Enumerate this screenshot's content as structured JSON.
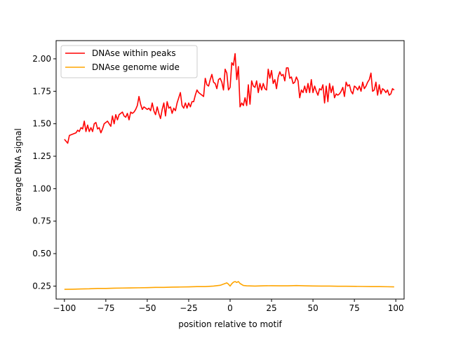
{
  "chart_data": {
    "type": "line",
    "xlabel": "position relative to motif",
    "ylabel": "average DNA signal",
    "xlim": [
      -105,
      105
    ],
    "ylim": [
      0.15,
      2.14
    ],
    "x_ticks": [
      -100,
      -75,
      -50,
      -25,
      0,
      25,
      50,
      75,
      100
    ],
    "y_ticks": [
      0.25,
      0.5,
      0.75,
      1.0,
      1.25,
      1.5,
      1.75,
      2.0
    ],
    "x_tick_labels": [
      "−100",
      "−75",
      "−50",
      "−25",
      "0",
      "25",
      "50",
      "75",
      "100"
    ],
    "y_tick_labels": [
      "0.25",
      "0.50",
      "0.75",
      "1.00",
      "1.25",
      "1.50",
      "1.75",
      "2.00"
    ],
    "legend_position": "top-left",
    "grid": false,
    "series": [
      {
        "name": "DNAse within peaks",
        "color": "#ff0000",
        "points": [
          [
            -100,
            1.38
          ],
          [
            -98,
            1.35
          ],
          [
            -97,
            1.41
          ],
          [
            -95,
            1.42
          ],
          [
            -93,
            1.43
          ],
          [
            -92,
            1.45
          ],
          [
            -91,
            1.44
          ],
          [
            -90,
            1.47
          ],
          [
            -89,
            1.46
          ],
          [
            -88,
            1.52
          ],
          [
            -87,
            1.44
          ],
          [
            -86,
            1.49
          ],
          [
            -85,
            1.44
          ],
          [
            -84,
            1.47
          ],
          [
            -83,
            1.44
          ],
          [
            -82,
            1.5
          ],
          [
            -81,
            1.51
          ],
          [
            -80,
            1.46
          ],
          [
            -79,
            1.47
          ],
          [
            -78,
            1.43
          ],
          [
            -77,
            1.46
          ],
          [
            -76,
            1.5
          ],
          [
            -75,
            1.51
          ],
          [
            -74,
            1.52
          ],
          [
            -73,
            1.5
          ],
          [
            -72,
            1.48
          ],
          [
            -71,
            1.56
          ],
          [
            -70,
            1.5
          ],
          [
            -69,
            1.57
          ],
          [
            -68,
            1.53
          ],
          [
            -67,
            1.57
          ],
          [
            -66,
            1.58
          ],
          [
            -65,
            1.59
          ],
          [
            -64,
            1.56
          ],
          [
            -63,
            1.55
          ],
          [
            -62,
            1.58
          ],
          [
            -61,
            1.53
          ],
          [
            -60,
            1.59
          ],
          [
            -59,
            1.58
          ],
          [
            -58,
            1.59
          ],
          [
            -57,
            1.61
          ],
          [
            -56,
            1.64
          ],
          [
            -55,
            1.71
          ],
          [
            -54,
            1.65
          ],
          [
            -53,
            1.61
          ],
          [
            -52,
            1.63
          ],
          [
            -51,
            1.62
          ],
          [
            -50,
            1.61
          ],
          [
            -49,
            1.62
          ],
          [
            -48,
            1.6
          ],
          [
            -47,
            1.66
          ],
          [
            -46,
            1.6
          ],
          [
            -45,
            1.57
          ],
          [
            -44,
            1.63
          ],
          [
            -43,
            1.58
          ],
          [
            -42,
            1.54
          ],
          [
            -41,
            1.61
          ],
          [
            -40,
            1.66
          ],
          [
            -39,
            1.56
          ],
          [
            -38,
            1.67
          ],
          [
            -37,
            1.62
          ],
          [
            -36,
            1.63
          ],
          [
            -35,
            1.58
          ],
          [
            -34,
            1.62
          ],
          [
            -33,
            1.6
          ],
          [
            -32,
            1.66
          ],
          [
            -31,
            1.7
          ],
          [
            -30,
            1.74
          ],
          [
            -29,
            1.64
          ],
          [
            -28,
            1.62
          ],
          [
            -27,
            1.66
          ],
          [
            -26,
            1.62
          ],
          [
            -25,
            1.66
          ],
          [
            -24,
            1.63
          ],
          [
            -23,
            1.67
          ],
          [
            -22,
            1.67
          ],
          [
            -21,
            1.72
          ],
          [
            -20,
            1.76
          ],
          [
            -19,
            1.74
          ],
          [
            -18,
            1.73
          ],
          [
            -17,
            1.72
          ],
          [
            -16,
            1.71
          ],
          [
            -15,
            1.85
          ],
          [
            -14,
            1.8
          ],
          [
            -13,
            1.79
          ],
          [
            -12,
            1.84
          ],
          [
            -11,
            1.88
          ],
          [
            -10,
            1.82
          ],
          [
            -9,
            1.81
          ],
          [
            -8,
            1.77
          ],
          [
            -7,
            1.84
          ],
          [
            -6,
            1.85
          ],
          [
            -5,
            1.82
          ],
          [
            -4,
            1.76
          ],
          [
            -3,
            1.92
          ],
          [
            -2,
            1.89
          ],
          [
            -1,
            1.76
          ],
          [
            0,
            1.78
          ],
          [
            1,
            1.97
          ],
          [
            2,
            1.95
          ],
          [
            3,
            2.04
          ],
          [
            4,
            1.84
          ],
          [
            5,
            1.94
          ],
          [
            6,
            1.63
          ],
          [
            7,
            1.66
          ],
          [
            8,
            1.64
          ],
          [
            9,
            1.7
          ],
          [
            10,
            1.64
          ],
          [
            11,
            1.8
          ],
          [
            12,
            1.65
          ],
          [
            13,
            1.83
          ],
          [
            14,
            1.79
          ],
          [
            15,
            1.78
          ],
          [
            16,
            1.83
          ],
          [
            17,
            1.74
          ],
          [
            18,
            1.81
          ],
          [
            19,
            1.76
          ],
          [
            20,
            1.81
          ],
          [
            21,
            1.77
          ],
          [
            22,
            1.76
          ],
          [
            23,
            1.92
          ],
          [
            24,
            1.85
          ],
          [
            25,
            1.91
          ],
          [
            26,
            1.81
          ],
          [
            27,
            1.84
          ],
          [
            28,
            1.77
          ],
          [
            29,
            1.86
          ],
          [
            30,
            1.9
          ],
          [
            31,
            1.87
          ],
          [
            32,
            1.88
          ],
          [
            33,
            1.83
          ],
          [
            34,
            1.93
          ],
          [
            35,
            1.93
          ],
          [
            36,
            1.85
          ],
          [
            37,
            1.86
          ],
          [
            38,
            1.81
          ],
          [
            39,
            1.82
          ],
          [
            40,
            1.86
          ],
          [
            41,
            1.83
          ],
          [
            42,
            1.7
          ],
          [
            43,
            1.76
          ],
          [
            44,
            1.74
          ],
          [
            45,
            1.79
          ],
          [
            46,
            1.74
          ],
          [
            47,
            1.81
          ],
          [
            48,
            1.74
          ],
          [
            49,
            1.84
          ],
          [
            50,
            1.74
          ],
          [
            51,
            1.79
          ],
          [
            52,
            1.75
          ],
          [
            53,
            1.72
          ],
          [
            54,
            1.77
          ],
          [
            55,
            1.76
          ],
          [
            56,
            1.8
          ],
          [
            57,
            1.66
          ],
          [
            58,
            1.79
          ],
          [
            59,
            1.67
          ],
          [
            60,
            1.81
          ],
          [
            61,
            1.74
          ],
          [
            62,
            1.79
          ],
          [
            63,
            1.7
          ],
          [
            64,
            1.73
          ],
          [
            65,
            1.72
          ],
          [
            66,
            1.73
          ],
          [
            67,
            1.75
          ],
          [
            68,
            1.78
          ],
          [
            69,
            1.71
          ],
          [
            70,
            1.82
          ],
          [
            71,
            1.79
          ],
          [
            72,
            1.8
          ],
          [
            73,
            1.75
          ],
          [
            74,
            1.73
          ],
          [
            75,
            1.79
          ],
          [
            76,
            1.78
          ],
          [
            77,
            1.76
          ],
          [
            78,
            1.79
          ],
          [
            79,
            1.75
          ],
          [
            80,
            1.82
          ],
          [
            81,
            1.77
          ],
          [
            82,
            1.79
          ],
          [
            83,
            1.82
          ],
          [
            84,
            1.84
          ],
          [
            85,
            1.89
          ],
          [
            86,
            1.75
          ],
          [
            87,
            1.76
          ],
          [
            88,
            1.82
          ],
          [
            89,
            1.72
          ],
          [
            90,
            1.8
          ],
          [
            91,
            1.73
          ],
          [
            92,
            1.77
          ],
          [
            93,
            1.76
          ],
          [
            94,
            1.74
          ],
          [
            95,
            1.76
          ],
          [
            96,
            1.72
          ],
          [
            97,
            1.73
          ],
          [
            98,
            1.77
          ],
          [
            99,
            1.76
          ]
        ]
      },
      {
        "name": "DNAse genome wide",
        "color": "#ffa500",
        "points": [
          [
            -100,
            0.225
          ],
          [
            -95,
            0.226
          ],
          [
            -90,
            0.228
          ],
          [
            -85,
            0.229
          ],
          [
            -80,
            0.232
          ],
          [
            -75,
            0.232
          ],
          [
            -70,
            0.234
          ],
          [
            -65,
            0.235
          ],
          [
            -60,
            0.236
          ],
          [
            -55,
            0.237
          ],
          [
            -50,
            0.238
          ],
          [
            -45,
            0.24
          ],
          [
            -40,
            0.24
          ],
          [
            -35,
            0.242
          ],
          [
            -30,
            0.243
          ],
          [
            -25,
            0.244
          ],
          [
            -20,
            0.246
          ],
          [
            -15,
            0.246
          ],
          [
            -10,
            0.25
          ],
          [
            -6,
            0.256
          ],
          [
            -4,
            0.265
          ],
          [
            -2,
            0.275
          ],
          [
            -1,
            0.265
          ],
          [
            0,
            0.25
          ],
          [
            1,
            0.268
          ],
          [
            2,
            0.28
          ],
          [
            3,
            0.285
          ],
          [
            4,
            0.278
          ],
          [
            5,
            0.285
          ],
          [
            6,
            0.27
          ],
          [
            8,
            0.255
          ],
          [
            10,
            0.252
          ],
          [
            15,
            0.25
          ],
          [
            20,
            0.252
          ],
          [
            25,
            0.253
          ],
          [
            30,
            0.252
          ],
          [
            35,
            0.252
          ],
          [
            40,
            0.254
          ],
          [
            45,
            0.252
          ],
          [
            50,
            0.251
          ],
          [
            55,
            0.25
          ],
          [
            60,
            0.25
          ],
          [
            65,
            0.249
          ],
          [
            70,
            0.249
          ],
          [
            75,
            0.248
          ],
          [
            80,
            0.247
          ],
          [
            85,
            0.246
          ],
          [
            90,
            0.246
          ],
          [
            95,
            0.245
          ],
          [
            99,
            0.244
          ]
        ]
      }
    ]
  }
}
